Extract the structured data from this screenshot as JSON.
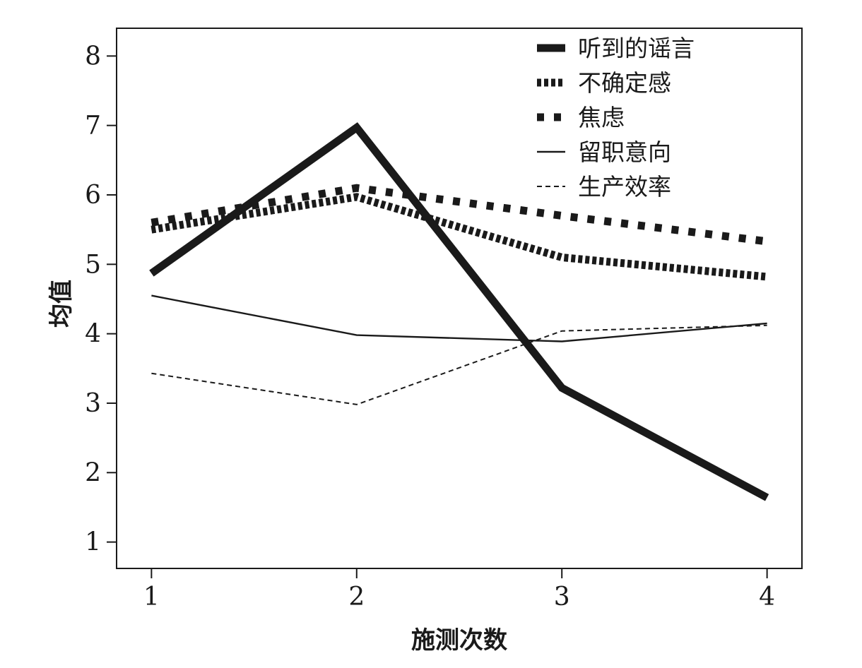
{
  "chart_data": {
    "type": "line",
    "xlabel": "施测次数",
    "ylabel": "均值",
    "x": [
      1,
      2,
      3,
      4
    ],
    "x_ticks": [
      "1",
      "2",
      "3",
      "4"
    ],
    "y_ticks": [
      "1",
      "2",
      "3",
      "4",
      "5",
      "6",
      "7",
      "8"
    ],
    "xlim": [
      0.83,
      4.17
    ],
    "ylim": [
      0.62,
      8.4
    ],
    "grid": false,
    "legend_position": "top-right",
    "series": [
      {
        "name": "听到的谣言",
        "values": [
          4.87,
          6.97,
          3.22,
          1.64
        ],
        "style": "thick-solid"
      },
      {
        "name": "不确定感",
        "values": [
          5.5,
          5.97,
          5.1,
          4.82
        ],
        "style": "thick-dense-dash"
      },
      {
        "name": "焦虑",
        "values": [
          5.6,
          6.1,
          5.7,
          5.33
        ],
        "style": "thick-sparse-dash"
      },
      {
        "name": "留职意向",
        "values": [
          4.55,
          3.98,
          3.89,
          4.15
        ],
        "style": "thin-solid"
      },
      {
        "name": "生产效率",
        "values": [
          3.43,
          2.98,
          4.04,
          4.12
        ],
        "style": "thin-dash"
      }
    ]
  }
}
